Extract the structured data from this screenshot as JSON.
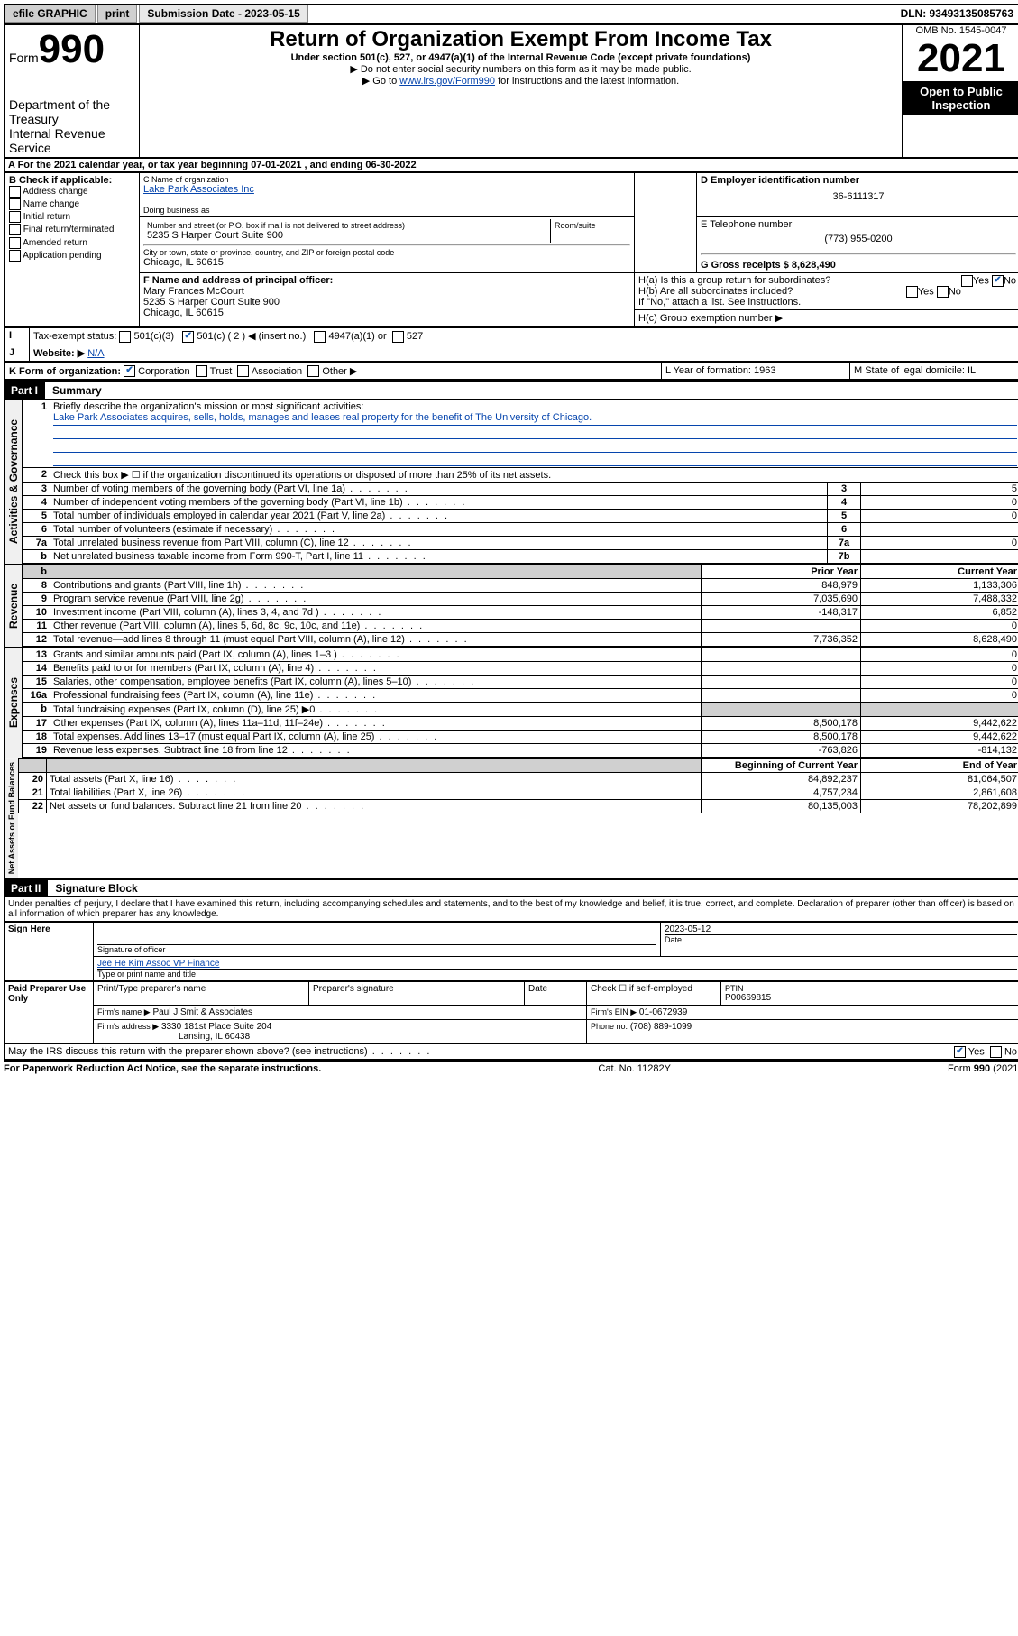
{
  "topbar": {
    "efile": "efile GRAPHIC",
    "print": "print",
    "subdate_label": "Submission Date - 2023-05-15",
    "dln": "DLN: 93493135085763"
  },
  "header": {
    "form_label": "Form",
    "form_number": "990",
    "title": "Return of Organization Exempt From Income Tax",
    "subtitle": "Under section 501(c), 527, or 4947(a)(1) of the Internal Revenue Code (except private foundations)",
    "instr1": "▶ Do not enter social security numbers on this form as it may be made public.",
    "instr2_pre": "▶ Go to ",
    "instr2_link": "www.irs.gov/Form990",
    "instr2_post": " for instructions and the latest information.",
    "dept": "Department of the Treasury",
    "irs": "Internal Revenue Service",
    "omb": "OMB No. 1545-0047",
    "year": "2021",
    "open_public": "Open to Public Inspection"
  },
  "secA": {
    "line": "A For the 2021 calendar year, or tax year beginning 07-01-2021   , and ending 06-30-2022",
    "b_label": "B Check if applicable:",
    "b_items": [
      "Address change",
      "Name change",
      "Initial return",
      "Final return/terminated",
      "Amended return",
      "Application pending"
    ],
    "c_label": "C Name of organization",
    "c_name": "Lake Park Associates Inc",
    "dba_label": "Doing business as",
    "addr_label": "Number and street (or P.O. box if mail is not delivered to street address)",
    "room_label": "Room/suite",
    "addr": "5235 S Harper Court Suite 900",
    "city_label": "City or town, state or province, country, and ZIP or foreign postal code",
    "city": "Chicago, IL  60615",
    "d_label": "D Employer identification number",
    "d_val": "36-6111317",
    "e_label": "E Telephone number",
    "e_val": "(773) 955-0200",
    "g_label": "G Gross receipts $ 8,628,490",
    "f_label": "F  Name and address of principal officer:",
    "f_name": "Mary Frances McCourt",
    "f_addr1": "5235 S Harper Court Suite 900",
    "f_addr2": "Chicago, IL  60615",
    "ha_label": "H(a)  Is this a group return for subordinates?",
    "hb_label": "H(b)  Are all subordinates included?",
    "hb_note": "If \"No,\" attach a list. See instructions.",
    "hc_label": "H(c)  Group exemption number ▶",
    "yes": "Yes",
    "no": "No",
    "i_label": "Tax-exempt status:",
    "i_501c3": "501(c)(3)",
    "i_501c": "501(c) ( 2 ) ◀ (insert no.)",
    "i_4947": "4947(a)(1) or",
    "i_527": "527",
    "j_label": "Website: ▶",
    "j_val": "N/A",
    "k_label": "K Form of organization:",
    "k_corp": "Corporation",
    "k_trust": "Trust",
    "k_assoc": "Association",
    "k_other": "Other ▶",
    "l_label": "L Year of formation: 1963",
    "m_label": "M State of legal domicile: IL"
  },
  "part1": {
    "header": "Part I",
    "title": "Summary",
    "vlabels": {
      "gov": "Activities & Governance",
      "rev": "Revenue",
      "exp": "Expenses",
      "net": "Net Assets or Fund Balances"
    },
    "line1_label": "Briefly describe the organization's mission or most significant activities:",
    "line1_text": "Lake Park Associates acquires, sells, holds, manages and leases real property for the benefit of The University of Chicago.",
    "line2": "Check this box ▶ ☐  if the organization discontinued its operations or disposed of more than 25% of its net assets.",
    "rows_gov": [
      {
        "n": "3",
        "t": "Number of voting members of the governing body (Part VI, line 1a)",
        "rn": "3",
        "v": "5"
      },
      {
        "n": "4",
        "t": "Number of independent voting members of the governing body (Part VI, line 1b)",
        "rn": "4",
        "v": "0"
      },
      {
        "n": "5",
        "t": "Total number of individuals employed in calendar year 2021 (Part V, line 2a)",
        "rn": "5",
        "v": "0"
      },
      {
        "n": "6",
        "t": "Total number of volunteers (estimate if necessary)",
        "rn": "6",
        "v": ""
      },
      {
        "n": "7a",
        "t": "Total unrelated business revenue from Part VIII, column (C), line 12",
        "rn": "7a",
        "v": "0"
      },
      {
        "n": "b",
        "t": "Net unrelated business taxable income from Form 990-T, Part I, line 11",
        "rn": "7b",
        "v": ""
      }
    ],
    "col_prior": "Prior Year",
    "col_current": "Current Year",
    "rows_rev": [
      {
        "n": "8",
        "t": "Contributions and grants (Part VIII, line 1h)",
        "p": "848,979",
        "c": "1,133,306"
      },
      {
        "n": "9",
        "t": "Program service revenue (Part VIII, line 2g)",
        "p": "7,035,690",
        "c": "7,488,332"
      },
      {
        "n": "10",
        "t": "Investment income (Part VIII, column (A), lines 3, 4, and 7d )",
        "p": "-148,317",
        "c": "6,852"
      },
      {
        "n": "11",
        "t": "Other revenue (Part VIII, column (A), lines 5, 6d, 8c, 9c, 10c, and 11e)",
        "p": "",
        "c": "0"
      },
      {
        "n": "12",
        "t": "Total revenue—add lines 8 through 11 (must equal Part VIII, column (A), line 12)",
        "p": "7,736,352",
        "c": "8,628,490"
      }
    ],
    "rows_exp": [
      {
        "n": "13",
        "t": "Grants and similar amounts paid (Part IX, column (A), lines 1–3 )",
        "p": "",
        "c": "0"
      },
      {
        "n": "14",
        "t": "Benefits paid to or for members (Part IX, column (A), line 4)",
        "p": "",
        "c": "0"
      },
      {
        "n": "15",
        "t": "Salaries, other compensation, employee benefits (Part IX, column (A), lines 5–10)",
        "p": "",
        "c": "0"
      },
      {
        "n": "16a",
        "t": "Professional fundraising fees (Part IX, column (A), line 11e)",
        "p": "",
        "c": "0"
      },
      {
        "n": "b",
        "t": "Total fundraising expenses (Part IX, column (D), line 25) ▶0",
        "p": "shade",
        "c": "shade"
      },
      {
        "n": "17",
        "t": "Other expenses (Part IX, column (A), lines 11a–11d, 11f–24e)",
        "p": "8,500,178",
        "c": "9,442,622"
      },
      {
        "n": "18",
        "t": "Total expenses. Add lines 13–17 (must equal Part IX, column (A), line 25)",
        "p": "8,500,178",
        "c": "9,442,622"
      },
      {
        "n": "19",
        "t": "Revenue less expenses. Subtract line 18 from line 12",
        "p": "-763,826",
        "c": "-814,132"
      }
    ],
    "col_beg": "Beginning of Current Year",
    "col_end": "End of Year",
    "rows_net": [
      {
        "n": "20",
        "t": "Total assets (Part X, line 16)",
        "p": "84,892,237",
        "c": "81,064,507"
      },
      {
        "n": "21",
        "t": "Total liabilities (Part X, line 26)",
        "p": "4,757,234",
        "c": "2,861,608"
      },
      {
        "n": "22",
        "t": "Net assets or fund balances. Subtract line 21 from line 20",
        "p": "80,135,003",
        "c": "78,202,899"
      }
    ]
  },
  "part2": {
    "header": "Part II",
    "title": "Signature Block",
    "decl": "Under penalties of perjury, I declare that I have examined this return, including accompanying schedules and statements, and to the best of my knowledge and belief, it is true, correct, and complete. Declaration of preparer (other than officer) is based on all information of which preparer has any knowledge.",
    "sign_here": "Sign Here",
    "sig_officer": "Signature of officer",
    "sig_date": "2023-05-12",
    "date_label": "Date",
    "officer_name": "Jee He Kim  Assoc VP Finance",
    "type_name": "Type or print name and title",
    "paid": "Paid Preparer Use Only",
    "prep_name_label": "Print/Type preparer's name",
    "prep_sig_label": "Preparer's signature",
    "check_self": "Check ☐ if self-employed",
    "ptin_label": "PTIN",
    "ptin": "P00669815",
    "firm_name_label": "Firm's name   ▶",
    "firm_name": "Paul J Smit & Associates",
    "firm_ein_label": "Firm's EIN ▶",
    "firm_ein": "01-0672939",
    "firm_addr_label": "Firm's address ▶",
    "firm_addr1": "3330 181st Place Suite 204",
    "firm_addr2": "Lansing, IL  60438",
    "phone_label": "Phone no.",
    "phone": "(708) 889-1099",
    "may_irs": "May the IRS discuss this return with the preparer shown above? (see instructions)",
    "paperwork": "For Paperwork Reduction Act Notice, see the separate instructions.",
    "catno": "Cat. No. 11282Y",
    "formno": "Form 990 (2021)"
  }
}
